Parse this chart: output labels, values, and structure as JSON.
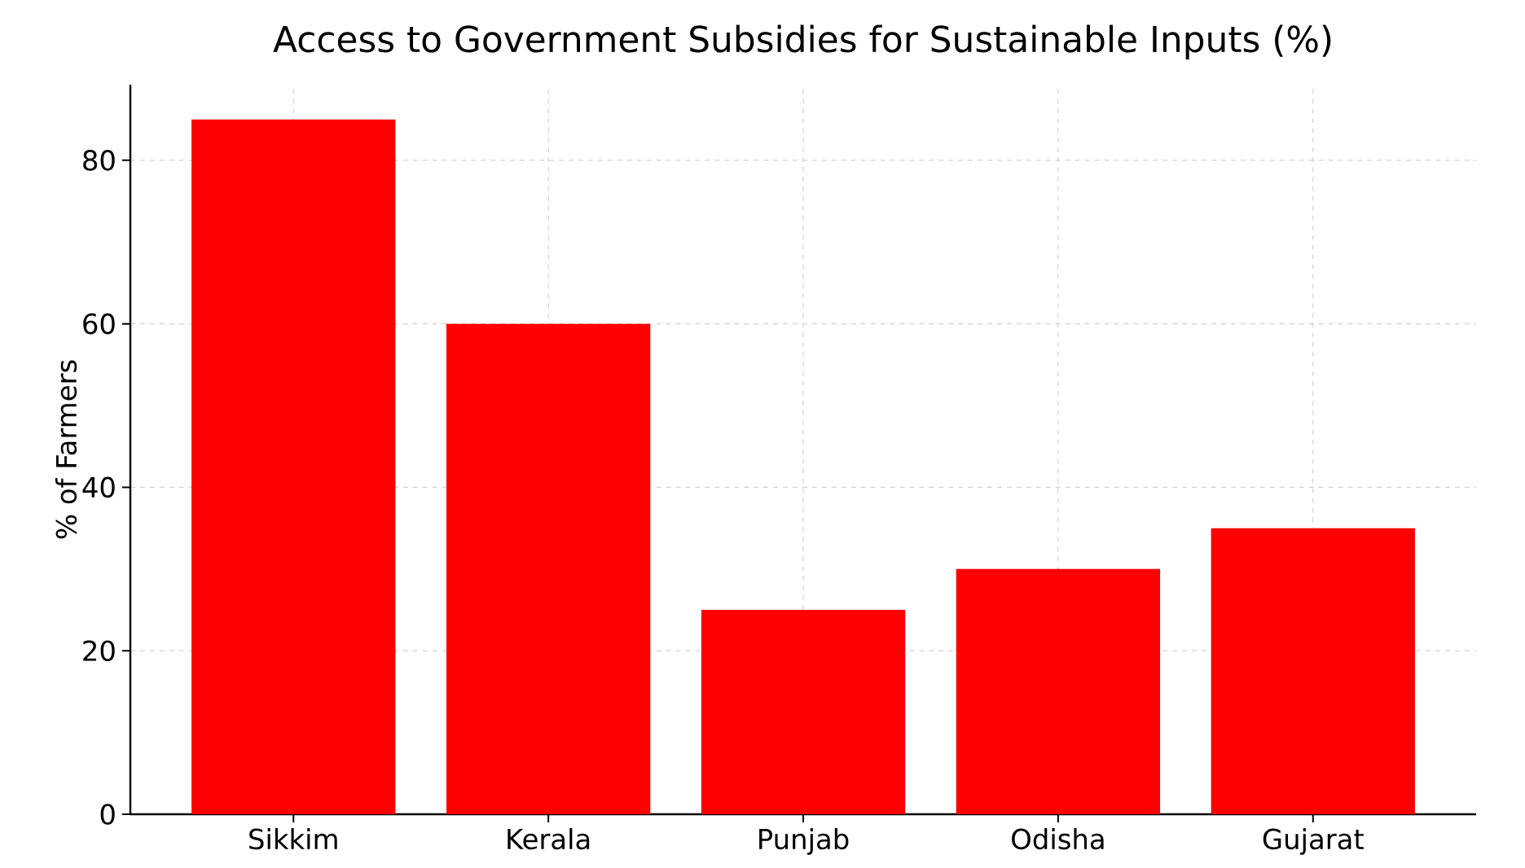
{
  "chart_data": {
    "type": "bar",
    "title": "Access to Government Subsidies for Sustainable Inputs (%)",
    "ylabel": "% of Farmers",
    "categories": [
      "Sikkim",
      "Kerala",
      "Punjab",
      "Odisha",
      "Gujarat"
    ],
    "values": [
      85,
      60,
      25,
      30,
      35
    ],
    "color": "#ff0000",
    "ylim": [
      0,
      89.25
    ],
    "yticks": [
      0,
      20,
      40,
      60,
      80
    ],
    "grid": true
  }
}
